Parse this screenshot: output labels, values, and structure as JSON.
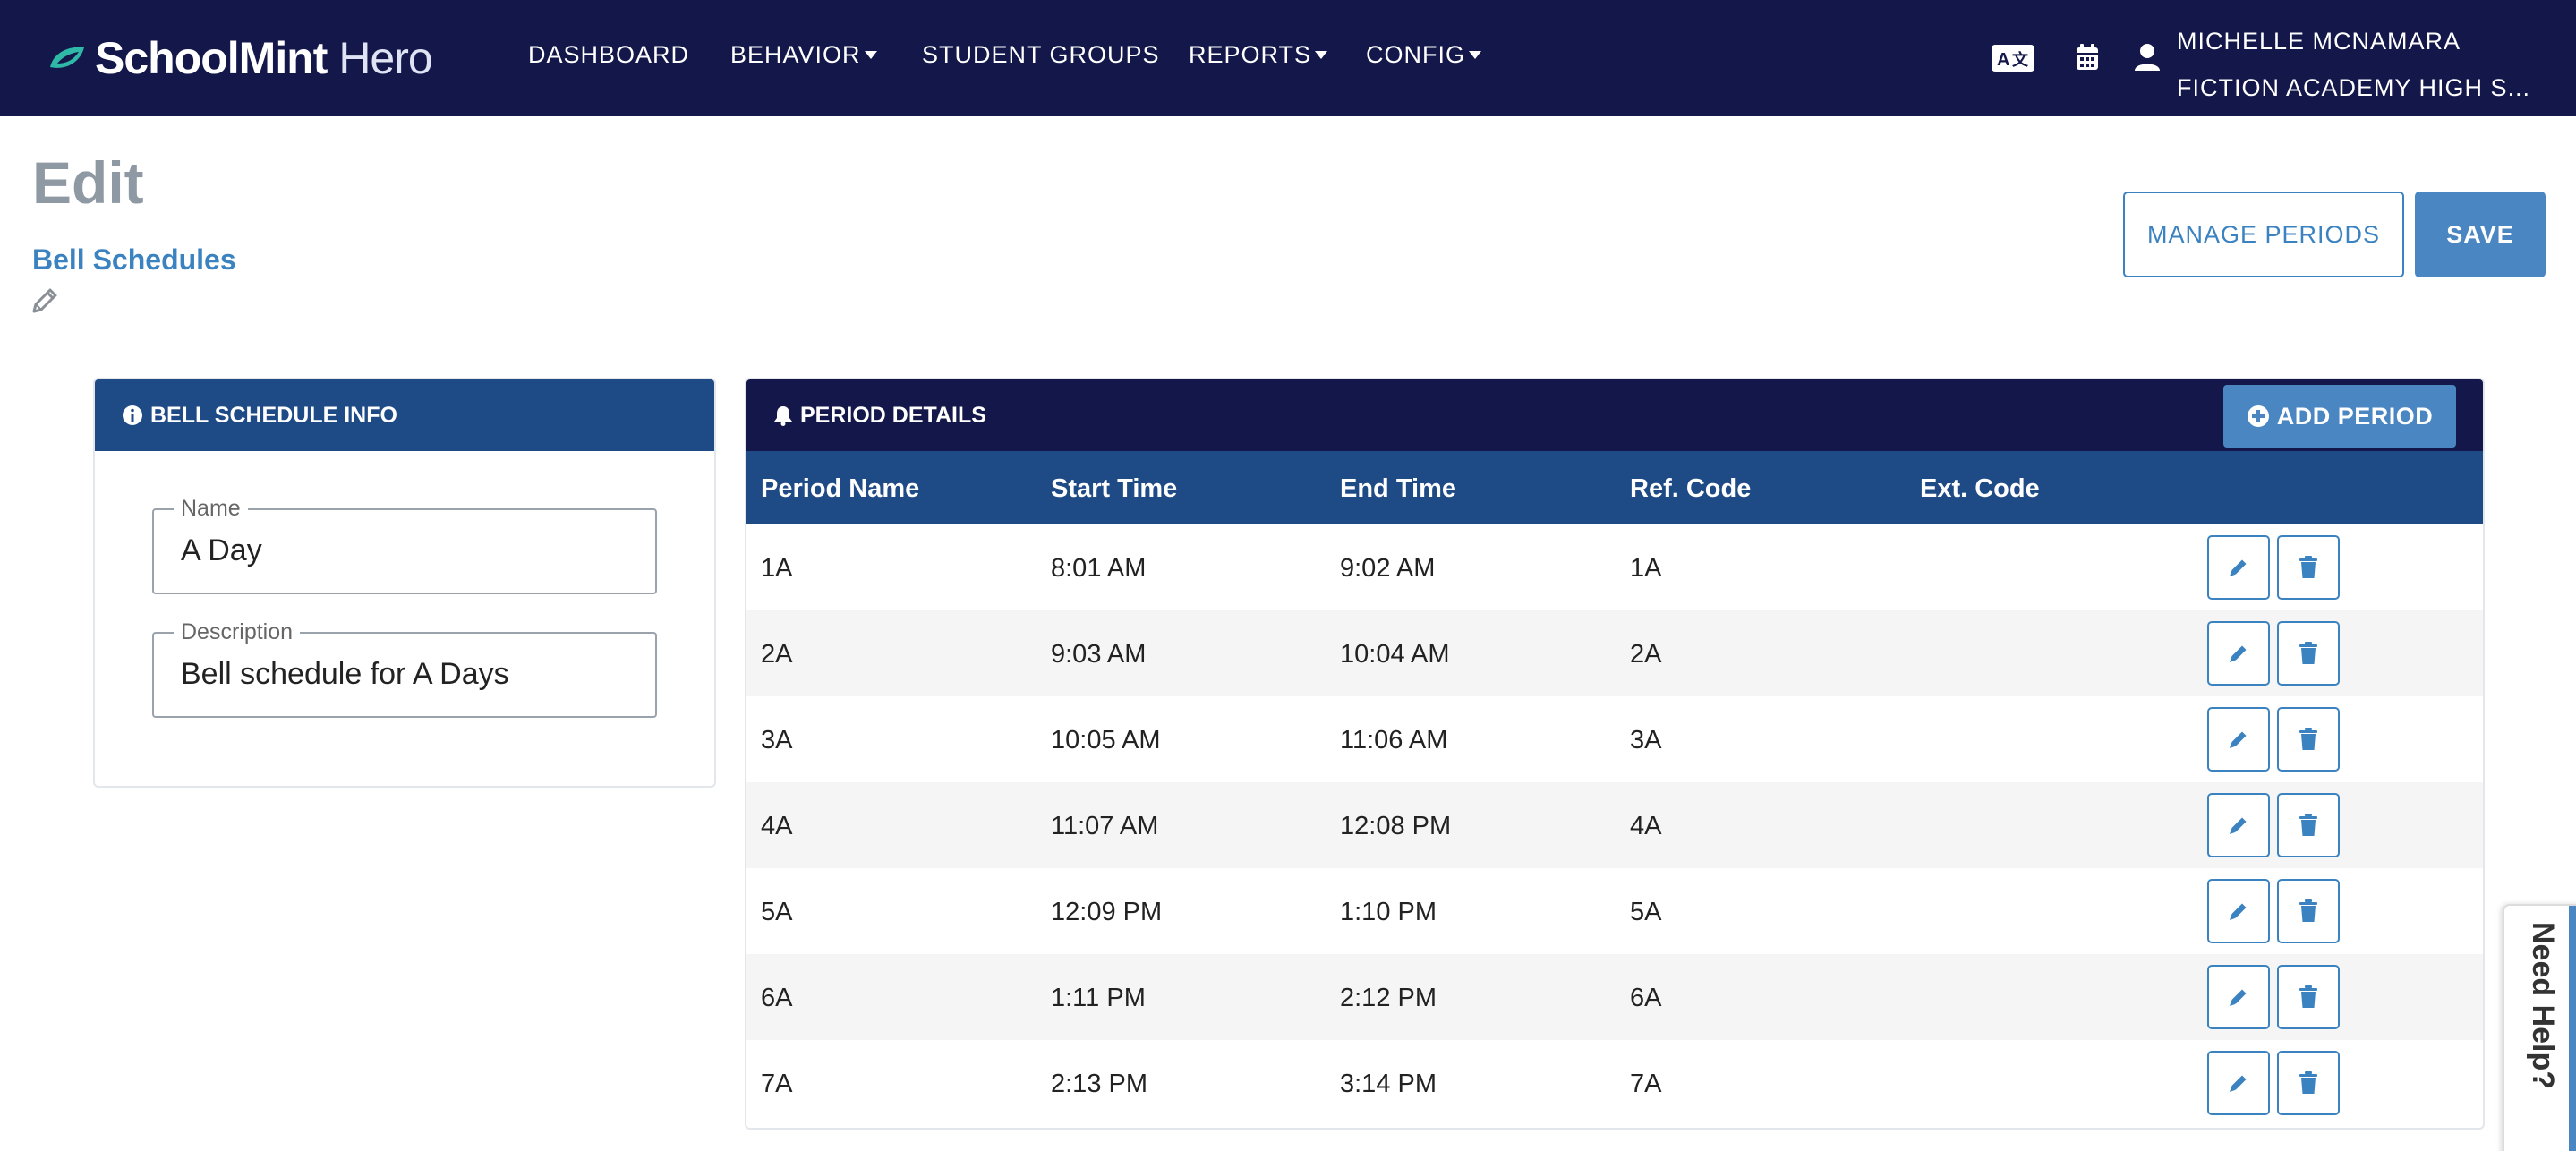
{
  "app": {
    "logo_bold": "SchoolMint",
    "logo_light": " Hero"
  },
  "nav": {
    "items": [
      {
        "label": "DASHBOARD",
        "has_caret": false
      },
      {
        "label": "BEHAVIOR",
        "has_caret": true
      },
      {
        "label": "STUDENT GROUPS",
        "has_caret": false
      },
      {
        "label": "REPORTS",
        "has_caret": true
      },
      {
        "label": "CONFIG",
        "has_caret": true
      }
    ],
    "icons": [
      "translate-icon",
      "calendar-icon",
      "user-icon"
    ],
    "user_name": "MICHELLE MCNAMARA",
    "school_name": "FICTION ACADEMY HIGH S..."
  },
  "page": {
    "title": "Edit",
    "breadcrumb": "Bell Schedules",
    "manage_periods_label": "MANAGE PERIODS",
    "save_label": "SAVE"
  },
  "bell_schedule_info": {
    "header": "BELL SCHEDULE INFO",
    "name_label": "Name",
    "name_value": "A Day",
    "description_label": "Description",
    "description_value": "Bell schedule for A Days"
  },
  "period_details": {
    "header": "PERIOD DETAILS",
    "add_label": "ADD PERIOD",
    "columns": [
      "Period Name",
      "Start Time",
      "End Time",
      "Ref. Code",
      "Ext. Code"
    ],
    "rows": [
      {
        "name": "1A",
        "start": "8:01 AM",
        "end": "9:02 AM",
        "ref": "1A",
        "ext": ""
      },
      {
        "name": "2A",
        "start": "9:03 AM",
        "end": "10:04 AM",
        "ref": "2A",
        "ext": ""
      },
      {
        "name": "3A",
        "start": "10:05 AM",
        "end": "11:06 AM",
        "ref": "3A",
        "ext": ""
      },
      {
        "name": "4A",
        "start": "11:07 AM",
        "end": "12:08 PM",
        "ref": "4A",
        "ext": ""
      },
      {
        "name": "5A",
        "start": "12:09 PM",
        "end": "1:10 PM",
        "ref": "5A",
        "ext": ""
      },
      {
        "name": "6A",
        "start": "1:11 PM",
        "end": "2:12 PM",
        "ref": "6A",
        "ext": ""
      },
      {
        "name": "7A",
        "start": "2:13 PM",
        "end": "3:14 PM",
        "ref": "7A",
        "ext": ""
      }
    ]
  },
  "help": {
    "label": "Need Help?"
  },
  "colors": {
    "nav_bg": "#13174a",
    "header_blue": "#1e4a86",
    "accent": "#4a86c2",
    "link": "#3b82c0",
    "title_gray": "#8e99a3",
    "row_alt": "#f5f5f5"
  }
}
